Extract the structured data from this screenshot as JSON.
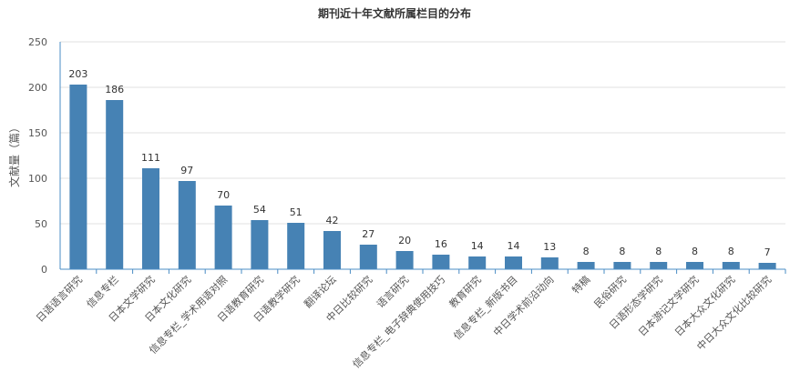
{
  "chart_data": {
    "type": "bar",
    "title": "期刊近十年文献所属栏目的分布",
    "ylabel": "文献量（篇）",
    "xlabel": "",
    "ylim": [
      0,
      250
    ],
    "yticks": [
      "0",
      "50",
      "100",
      "150",
      "200",
      "250"
    ],
    "grid": true,
    "bar_color": "#4682b4",
    "categories": [
      "日语语言研究",
      "信息专栏",
      "日本文学研究",
      "日本文化研究",
      "信息专栏_学术用语对照",
      "日语教育研究",
      "日语教学研究",
      "翻译论坛",
      "中日比较研究",
      "语言研究",
      "信息专栏_电子辞典使用技巧",
      "教育研究",
      "信息专栏_新版书目",
      "中日学术前沿动向",
      "特稿",
      "民俗研究",
      "日语形态学研究",
      "日本游记文学研究",
      "日本大众文化研究",
      "中日大众文化比较研究"
    ],
    "values": [
      203,
      186,
      111,
      97,
      70,
      54,
      51,
      42,
      27,
      20,
      16,
      14,
      14,
      13,
      8,
      8,
      8,
      8,
      8,
      7
    ],
    "value_labels": [
      "203",
      "186",
      "111",
      "97",
      "70",
      "54",
      "51",
      "42",
      "27",
      "20",
      "16",
      "14",
      "14",
      "13",
      "8",
      "8",
      "8",
      "8",
      "8",
      "7"
    ]
  }
}
